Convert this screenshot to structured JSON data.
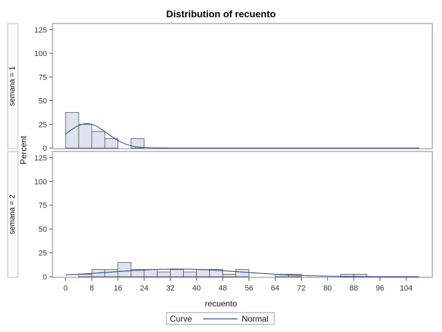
{
  "chart_data": {
    "type": "bar",
    "title": "Distribution of recuento",
    "xlabel": "recuento",
    "ylabel": "Percent",
    "xlim": [
      -4,
      112
    ],
    "ylim": [
      0,
      130
    ],
    "xticks": [
      0,
      8,
      16,
      24,
      32,
      40,
      48,
      56,
      64,
      72,
      80,
      88,
      96,
      104
    ],
    "yticks": [
      0,
      25,
      50,
      75,
      100,
      125
    ],
    "bin_width": 4,
    "grid": false,
    "legend": {
      "position": "bottom",
      "title": "Curve",
      "entries": [
        "Normal"
      ]
    },
    "colors": {
      "bar_fill": "#dde3f0",
      "bar_stroke": "#4d4d4d",
      "curve": "#2f4a8a",
      "frame": "#808080"
    },
    "panels": [
      {
        "label": "semana = 1",
        "bins": [
          {
            "x": 0,
            "y": 37.5
          },
          {
            "x": 4,
            "y": 25
          },
          {
            "x": 8,
            "y": 17.5
          },
          {
            "x": 12,
            "y": 10
          },
          {
            "x": 20,
            "y": 10
          }
        ],
        "normal": {
          "mean": 6.5,
          "sd": 6.2
        }
      },
      {
        "label": "semana = 2",
        "bins": [
          {
            "x": 4,
            "y": 2.5
          },
          {
            "x": 8,
            "y": 7.5
          },
          {
            "x": 12,
            "y": 7.5
          },
          {
            "x": 16,
            "y": 15
          },
          {
            "x": 20,
            "y": 7.5
          },
          {
            "x": 24,
            "y": 7.5
          },
          {
            "x": 28,
            "y": 5
          },
          {
            "x": 32,
            "y": 7.5
          },
          {
            "x": 36,
            "y": 5
          },
          {
            "x": 40,
            "y": 7.5
          },
          {
            "x": 44,
            "y": 7.5
          },
          {
            "x": 48,
            "y": 2.5
          },
          {
            "x": 52,
            "y": 7.5
          },
          {
            "x": 64,
            "y": 2.5
          },
          {
            "x": 68,
            "y": 2.5
          },
          {
            "x": 84,
            "y": 2.5
          },
          {
            "x": 88,
            "y": 2.5
          }
        ],
        "normal": {
          "mean": 34,
          "sd": 20
        }
      }
    ]
  }
}
